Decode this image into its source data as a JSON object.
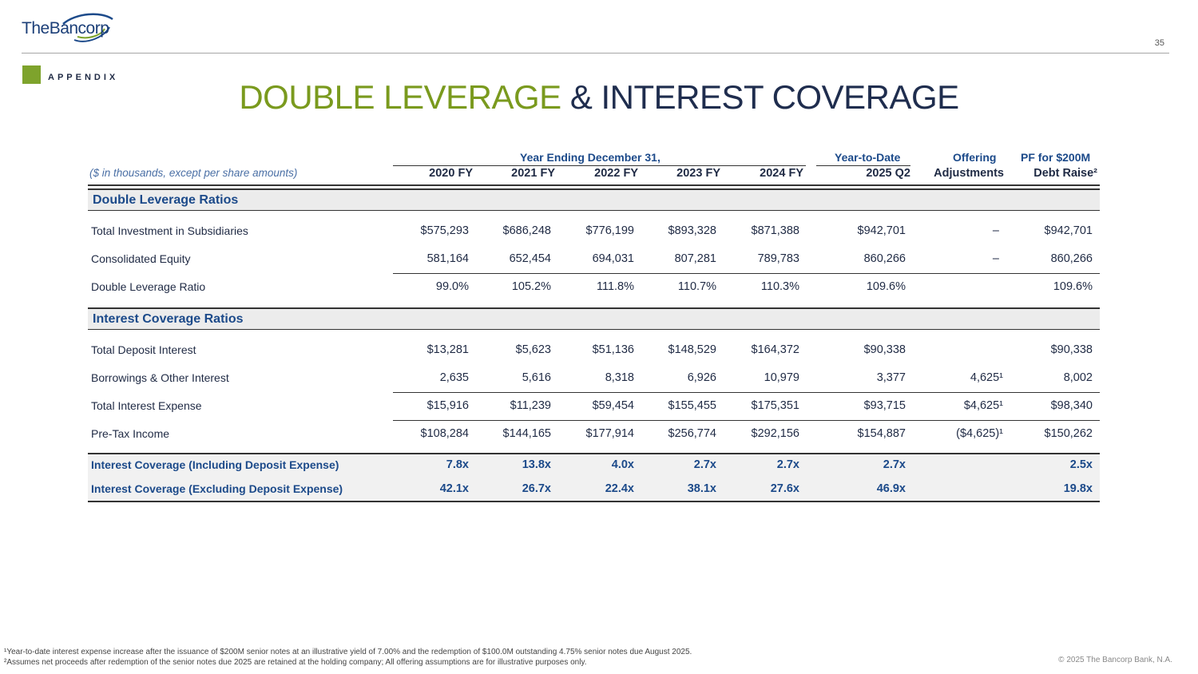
{
  "header": {
    "logo_the": "The",
    "logo_name": "Bancorp",
    "page_number": "35",
    "section_label": "APPENDIX",
    "title_part1": "DOUBLE LEVERAGE",
    "title_part2": "& INTEREST COVERAGE"
  },
  "table": {
    "units_note": "($ in thousands, except per share amounts)",
    "group_header": "Year Ending December 31,",
    "ytd_header_top": "Year-to-Date",
    "offering_header_top": "Offering",
    "pf_header_top": "PF for $200M",
    "columns": [
      "2020 FY",
      "2021 FY",
      "2022 FY",
      "2023 FY",
      "2024 FY",
      "2025 Q2",
      "Adjustments",
      "Debt Raise²"
    ],
    "sections": [
      {
        "label": "Double Leverage Ratios",
        "rows": [
          {
            "label": "Total Investment in Subsidiaries",
            "values": [
              "$575,293",
              "$686,248",
              "$776,199",
              "$893,328",
              "$871,388",
              "$942,701",
              "–",
              "$942,701"
            ]
          },
          {
            "label": "Consolidated Equity",
            "values": [
              "581,164",
              "652,454",
              "694,031",
              "807,281",
              "789,783",
              "860,266",
              "–",
              "860,266"
            ]
          },
          {
            "label": "Double Leverage Ratio",
            "values": [
              "99.0%",
              "105.2%",
              "111.8%",
              "110.7%",
              "110.3%",
              "109.6%",
              "",
              "109.6%"
            ]
          }
        ]
      },
      {
        "label": "Interest Coverage Ratios",
        "rows": [
          {
            "label": "Total Deposit Interest",
            "values": [
              "$13,281",
              "$5,623",
              "$51,136",
              "$148,529",
              "$164,372",
              "$90,338",
              "",
              "$90,338"
            ]
          },
          {
            "label": "Borrowings & Other Interest",
            "values": [
              "2,635",
              "5,616",
              "8,318",
              "6,926",
              "10,979",
              "3,377",
              "4,625¹",
              "8,002"
            ]
          },
          {
            "label": "Total Interest Expense",
            "values": [
              "$15,916",
              "$11,239",
              "$59,454",
              "$155,455",
              "$175,351",
              "$93,715",
              "$4,625¹",
              "$98,340"
            ]
          },
          {
            "label": "Pre-Tax Income",
            "values": [
              "$108,284",
              "$144,165",
              "$177,914",
              "$256,774",
              "$292,156",
              "$154,887",
              "($4,625)¹",
              "$150,262"
            ]
          }
        ]
      }
    ],
    "coverage_rows": [
      {
        "label": "Interest Coverage (Including Deposit Expense)",
        "values": [
          "7.8x",
          "13.8x",
          "4.0x",
          "2.7x",
          "2.7x",
          "2.7x",
          "",
          "2.5x"
        ]
      },
      {
        "label": "Interest Coverage (Excluding Deposit Expense)",
        "values": [
          "42.1x",
          "26.7x",
          "22.4x",
          "38.1x",
          "27.6x",
          "46.9x",
          "",
          "19.8x"
        ]
      }
    ]
  },
  "footer": {
    "footnote1": "¹Year-to-date interest expense increase after the issuance of $200M senior notes at an illustrative yield of 7.00% and the redemption of $100.0M outstanding 4.75% senior notes due August 2025.",
    "footnote2": "²Assumes net proceeds after redemption of the senior notes due 2025 are retained at the holding company; All offering assumptions are for illustrative purposes only.",
    "copyright": "© 2025 The Bancorp Bank, N.A."
  },
  "colors": {
    "accent_green": "#7a9a1e",
    "navy": "#1f2d4e",
    "header_blue": "#1c4a8a"
  }
}
